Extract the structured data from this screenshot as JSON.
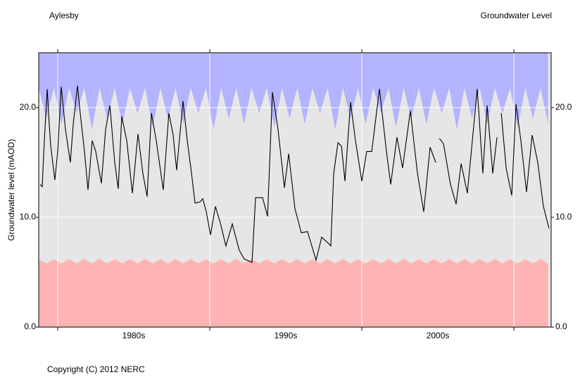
{
  "chart_data": {
    "type": "line",
    "title": "Aylesby",
    "subtitle": "Groundwater Level",
    "ylabel": "Groundwater level (mAOD)",
    "copyright": "Copyright (C) 2012 NERC",
    "xlim": [
      1978.75,
      2012.45
    ],
    "ylim": [
      0,
      25
    ],
    "yticks": [
      {
        "value": 0,
        "label": "0.0"
      },
      {
        "value": 10,
        "label": "10.0"
      },
      {
        "value": 20,
        "label": "20.0"
      }
    ],
    "xticks": [
      {
        "value": 1985,
        "label": "1980s"
      },
      {
        "value": 1995,
        "label": "1990s"
      },
      {
        "value": 2005,
        "label": "2000s"
      }
    ],
    "xgrid": [
      1980,
      1990,
      2000,
      2010
    ],
    "grid": true,
    "plot_background": "#e6e6e6",
    "envelope_x": [
      1978.75,
      1979.25,
      1979.75,
      1980.25,
      1980.75,
      1981.25,
      1981.75,
      1982.25,
      1982.75,
      1983.25,
      1983.75,
      1984.25,
      1984.75,
      1985.25,
      1985.75,
      1986.25,
      1986.75,
      1987.25,
      1987.75,
      1988.25,
      1988.75,
      1989.25,
      1989.75,
      1990.25,
      1990.75,
      1991.25,
      1991.75,
      1992.25,
      1992.75,
      1993.25,
      1993.75,
      1994.25,
      1994.75,
      1995.25,
      1995.75,
      1996.25,
      1996.75,
      1997.25,
      1997.75,
      1998.25,
      1998.75,
      1999.25,
      1999.75,
      2000.25,
      2000.75,
      2001.25,
      2001.75,
      2002.25,
      2002.75,
      2003.25,
      2003.75,
      2004.25,
      2004.75,
      2005.25,
      2005.75,
      2006.25,
      2006.75,
      2007.25,
      2007.75,
      2008.25,
      2008.75,
      2009.25,
      2009.75,
      2010.25,
      2010.75,
      2011.25,
      2011.75,
      2012.25
    ],
    "max_envelope": {
      "color": "#b3b3ff",
      "values": [
        21.8,
        19,
        21.8,
        18.5,
        21.8,
        19.5,
        21.8,
        18,
        21.8,
        19,
        21.8,
        18.5,
        21.8,
        19.5,
        21.8,
        18.2,
        21.8,
        19,
        21.8,
        18.5,
        21.8,
        19.5,
        21.8,
        18,
        21.8,
        19,
        21.8,
        18.5,
        21.8,
        19.5,
        21.8,
        18.2,
        21.8,
        19,
        21.8,
        18.5,
        21.8,
        19.5,
        21.8,
        18,
        21.8,
        19,
        21.8,
        18.5,
        21.8,
        19.5,
        21.8,
        18.2,
        21.8,
        19,
        21.8,
        18.5,
        21.8,
        19.5,
        21.8,
        18,
        21.8,
        19,
        21.8,
        18.5,
        21.8,
        19.5,
        21.8,
        18.2,
        21.8,
        19,
        21.8,
        18.5
      ]
    },
    "min_envelope": {
      "color": "#ffb3b3",
      "values": [
        6.2,
        5.8,
        6.2,
        5.8,
        6.2,
        5.8,
        6.2,
        5.8,
        6.2,
        5.8,
        6.2,
        5.8,
        6.2,
        5.8,
        6.2,
        5.8,
        6.2,
        5.8,
        6.2,
        5.8,
        6.2,
        5.8,
        6.2,
        5.8,
        6.2,
        5.8,
        6.2,
        5.8,
        6.2,
        5.8,
        6.2,
        5.8,
        6.2,
        5.8,
        6.2,
        5.8,
        6.2,
        5.8,
        6.2,
        5.8,
        6.2,
        5.8,
        6.2,
        5.8,
        6.2,
        5.8,
        6.2,
        5.8,
        6.2,
        5.8,
        6.2,
        5.8,
        6.2,
        5.8,
        6.2,
        5.8,
        6.2,
        5.8,
        6.2,
        5.8,
        6.2,
        5.8,
        6.2,
        5.8,
        6.2,
        5.8,
        6.2,
        5.8
      ]
    },
    "x": [
      1978.84,
      1978.98,
      1979.12,
      1979.31,
      1979.44,
      1979.54,
      1979.81,
      1980.0,
      1980.23,
      1980.51,
      1980.83,
      1981.02,
      1981.3,
      1981.44,
      1981.76,
      1981.99,
      1982.27,
      1982.5,
      1982.87,
      1983.15,
      1983.43,
      1983.75,
      1983.98,
      1984.21,
      1984.54,
      1984.91,
      1985.28,
      1985.6,
      1985.88,
      1986.16,
      1986.48,
      1986.94,
      1987.31,
      1987.59,
      1987.82,
      1988.24,
      1988.52,
      1988.8,
      1989.03,
      1989.35,
      1989.54,
      1989.77,
      1990.05,
      1990.37,
      1990.69,
      1991.06,
      1991.48,
      1991.94,
      1992.27,
      1992.78,
      1993.01,
      1993.47,
      1993.8,
      1994.12,
      1994.49,
      1994.91,
      1995.19,
      1995.6,
      1996.02,
      1996.43,
      1996.99,
      1997.36,
      1997.82,
      1997.96,
      1998.15,
      1998.43,
      1998.66,
      1998.89,
      1999.26,
      1999.58,
      2000.0,
      2000.32,
      2000.65,
      2001.16,
      2001.62,
      2001.9,
      2002.31,
      2002.68,
      2003.19,
      2003.66,
      2004.07,
      2004.49,
      2004.86,
      2004.95,
      2005.1,
      2005.37,
      2005.83,
      2006.2,
      2006.53,
      2006.94,
      2007.59,
      2007.96,
      2008.24,
      2008.61,
      2008.89,
      2009.05,
      2009.17,
      2009.49,
      2009.86,
      2010.14,
      2010.46,
      2010.83,
      2011.2,
      2011.57,
      2011.94,
      2012.31
    ],
    "series": [
      {
        "name": "Groundwater level",
        "color": "#000000",
        "values": [
          13,
          12.8,
          17,
          21.7,
          18.5,
          16.5,
          13.4,
          16,
          21.9,
          18,
          15,
          18.5,
          22,
          20,
          16,
          12.5,
          17,
          16,
          13.1,
          18,
          20.2,
          15,
          12.6,
          19.2,
          17,
          12.2,
          17.6,
          14,
          11.9,
          19.5,
          17,
          12.5,
          19.5,
          17.5,
          14.3,
          20.6,
          17,
          14,
          11.3,
          11.4,
          11.7,
          10.5,
          8.4,
          11,
          9.5,
          7.4,
          9.4,
          7.0,
          6.2,
          5.9,
          11.8,
          11.8,
          10.1,
          21.4,
          18,
          12.7,
          15.8,
          10.8,
          8.6,
          8.7,
          6.1,
          8.2,
          7.6,
          7.4,
          14,
          16.8,
          16.5,
          13.3,
          20.5,
          17,
          13.3,
          16,
          16,
          21.7,
          16,
          13,
          17.3,
          14.5,
          19.7,
          14,
          10.5,
          16.4,
          15,
          null,
          17.2,
          16.7,
          13,
          11.2,
          14.9,
          12.2,
          21.7,
          14,
          20.2,
          14,
          17.3,
          null,
          19.5,
          14.5,
          12,
          20.3,
          17,
          12.3,
          17.5,
          15,
          11,
          9
        ]
      }
    ]
  }
}
